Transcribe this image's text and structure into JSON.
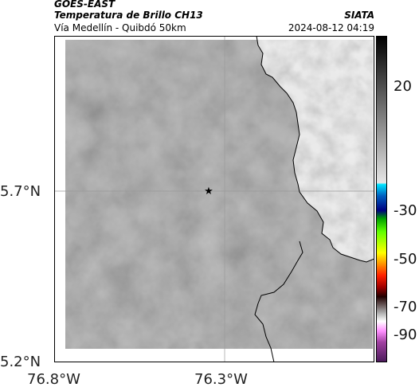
{
  "header": {
    "satellite": "GOES-EAST",
    "product": "Temperatura de Brillo CH13",
    "route": "Vía Medellín - Quibdó 50km",
    "agency": "SIATA",
    "timestamp": "2024-08-12 04:19"
  },
  "map": {
    "lat_ticks": [
      "5.7°N",
      "5.2°N"
    ],
    "lon_ticks": [
      "76.8°W",
      "76.3°W"
    ],
    "marker_icon": "star-icon",
    "colors": {
      "cloud_gray": "#8a8a8a",
      "border": "#000000",
      "grid": "#9a9a9a"
    }
  },
  "colorbar": {
    "ticks": [
      "20",
      "-30",
      "-50",
      "-70",
      "-90"
    ]
  }
}
